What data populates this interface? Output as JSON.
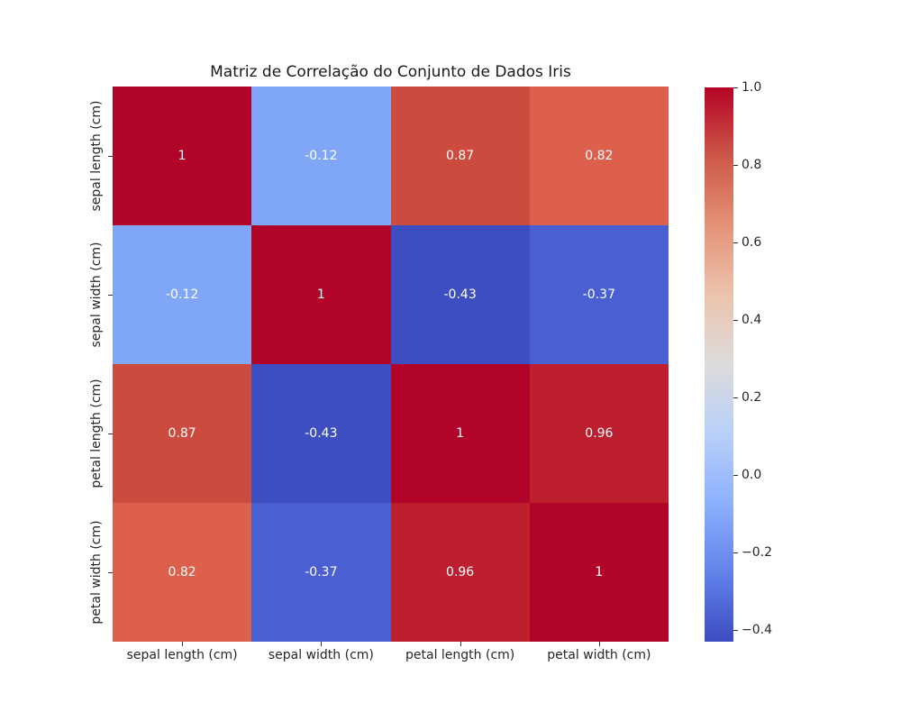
{
  "figure": {
    "background_color": "#ffffff",
    "text_color": "#262626",
    "annotation_text_color": "#ffffff"
  },
  "chart_data": {
    "type": "heatmap",
    "title": "Matriz de Correlação do Conjunto de Dados Iris",
    "categories": [
      "sepal length (cm)",
      "sepal width (cm)",
      "petal length (cm)",
      "petal width (cm)"
    ],
    "matrix": [
      [
        1,
        -0.12,
        0.87,
        0.82
      ],
      [
        -0.12,
        1,
        -0.43,
        -0.37
      ],
      [
        0.87,
        -0.43,
        1,
        0.96
      ],
      [
        0.82,
        -0.37,
        0.96,
        1
      ]
    ],
    "cell_labels": [
      [
        "1",
        "-0.12",
        "0.87",
        "0.82"
      ],
      [
        "-0.12",
        "1",
        "-0.43",
        "-0.37"
      ],
      [
        "0.87",
        "-0.43",
        "1",
        "0.96"
      ],
      [
        "0.82",
        "-0.37",
        "0.96",
        "1"
      ]
    ],
    "cell_colors": [
      [
        "#b20428",
        "#80a6f8",
        "#cd4a3f",
        "#dc604c"
      ],
      [
        "#80a6f8",
        "#b20428",
        "#3d4ec0",
        "#4a5fd1"
      ],
      [
        "#cd4a3f",
        "#3d4ec0",
        "#b20428",
        "#bd1f2f"
      ],
      [
        "#dc604c",
        "#4a5fd1",
        "#bd1f2f",
        "#b20428"
      ]
    ],
    "colormap": "coolwarm",
    "vmin": -0.43,
    "vmax": 1.0,
    "grid": false,
    "colorbar": {
      "position": "right",
      "tick_labels": [
        "1.0",
        "0.8",
        "0.6",
        "0.4",
        "0.2",
        "0.0",
        "−0.2",
        "−0.4"
      ],
      "tick_values": [
        1.0,
        0.8,
        0.6,
        0.4,
        0.2,
        0.0,
        -0.2,
        -0.4
      ],
      "gradient_stops": [
        {
          "pos": 0,
          "color": "#b40426"
        },
        {
          "pos": 12.5,
          "color": "#cc5849"
        },
        {
          "pos": 25,
          "color": "#e59278"
        },
        {
          "pos": 37.5,
          "color": "#ecc3ad"
        },
        {
          "pos": 50,
          "color": "#dddcdb"
        },
        {
          "pos": 62.5,
          "color": "#b8d0f9"
        },
        {
          "pos": 75,
          "color": "#8db0fe"
        },
        {
          "pos": 87.5,
          "color": "#6282ea"
        },
        {
          "pos": 100,
          "color": "#3b4cc0"
        }
      ]
    }
  }
}
